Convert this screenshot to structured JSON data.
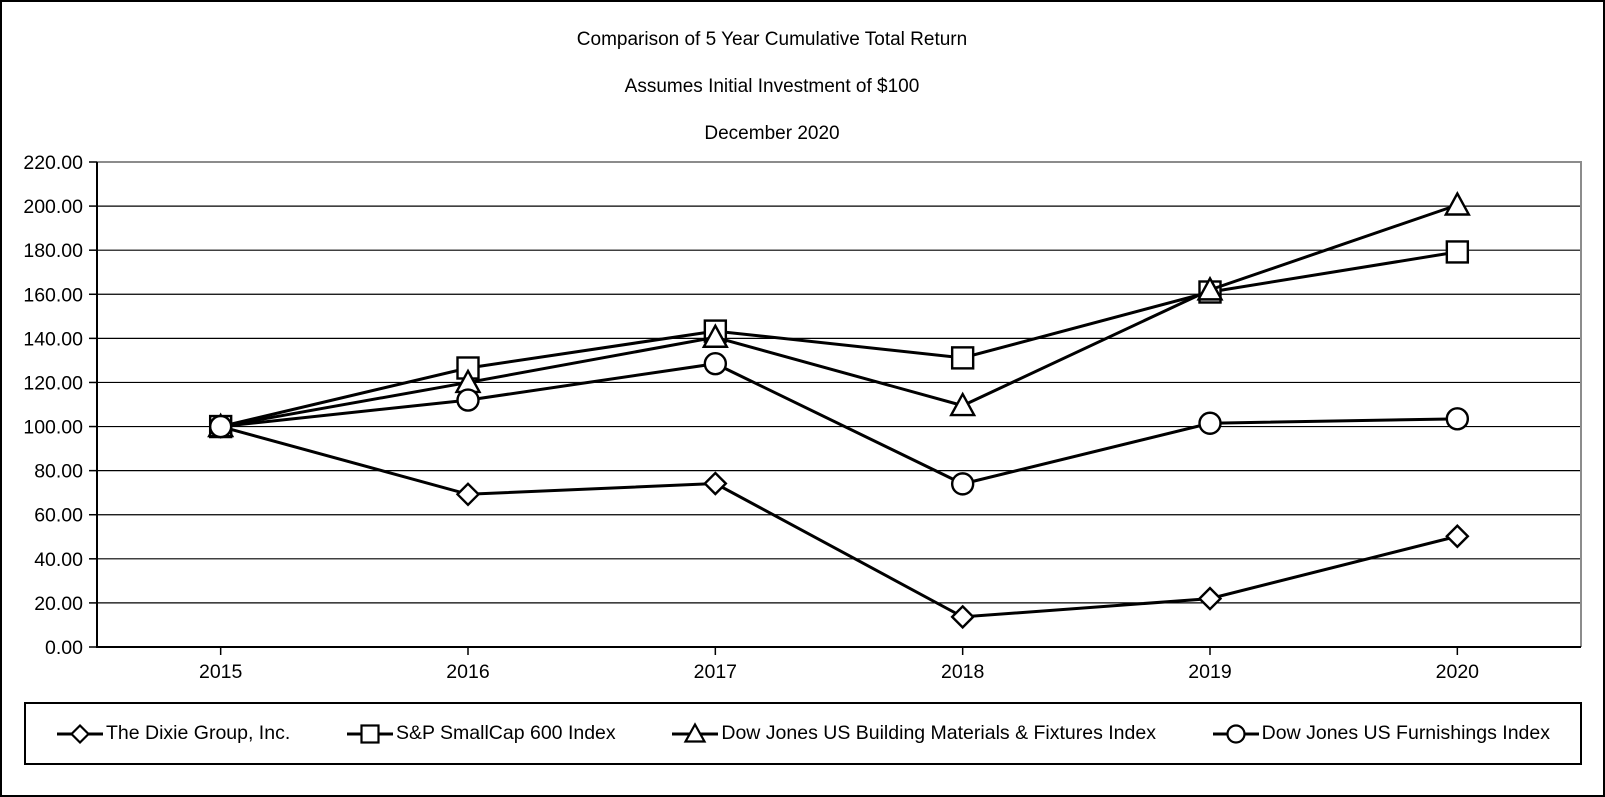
{
  "page": {
    "background": "#ffffff",
    "border_color": "#000000",
    "line_color": "#000000",
    "grid_color": "#000000",
    "frame_gray": "#8c8c8c",
    "marker_fill": "#ffffff"
  },
  "title": {
    "line1": "Comparison of 5 Year Cumulative Total Return",
    "line2": "Assumes Initial Investment of $100",
    "line3": "December 2020"
  },
  "chart_data": {
    "type": "line",
    "title": "Comparison of 5 Year Cumulative Total Return",
    "subtitle": "Assumes Initial Investment of $100",
    "date_label": "December 2020",
    "x_categories": [
      "2015",
      "2016",
      "2017",
      "2018",
      "2019",
      "2020"
    ],
    "series": [
      {
        "name": "The Dixie Group, Inc.",
        "marker": "diamond",
        "values": [
          100.0,
          69.27,
          74.15,
          13.66,
          21.95,
          50.24
        ]
      },
      {
        "name": "S&P SmallCap 600 Index",
        "marker": "square",
        "values": [
          100.0,
          126.56,
          143.3,
          131.15,
          161.03,
          179.2
        ]
      },
      {
        "name": "Dow Jones US Building Materials & Fixtures Index",
        "marker": "triangle",
        "values": [
          100.0,
          120.0,
          140.5,
          109.5,
          162.0,
          200.5
        ]
      },
      {
        "name": "Dow Jones US Furnishings Index",
        "marker": "circle",
        "values": [
          100.0,
          112.0,
          128.5,
          74.0,
          101.5,
          103.5
        ]
      }
    ],
    "ylim": [
      0,
      220
    ],
    "ytick_step": 20,
    "ytick_decimals": 2,
    "ytick_labels": [
      "0.00",
      "20.00",
      "40.00",
      "60.00",
      "80.00",
      "100.00",
      "120.00",
      "140.00",
      "160.00",
      "180.00",
      "200.00",
      "220.00"
    ],
    "xlabel": "",
    "ylabel": "",
    "grid": "horizontal",
    "legend_position": "bottom"
  }
}
